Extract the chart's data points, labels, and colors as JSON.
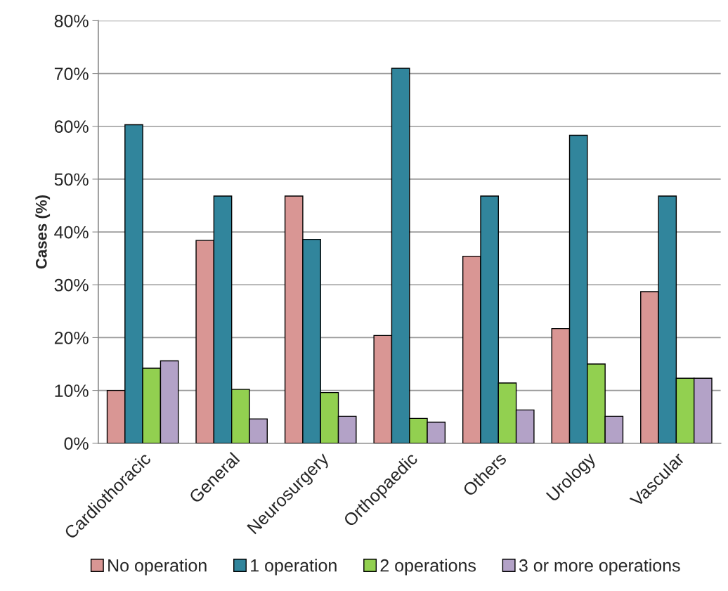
{
  "chart_data": {
    "type": "bar",
    "ylabel": "Cases (%)",
    "categories": [
      "Cardiothoracic",
      "General",
      "Neurosurgery",
      "Orthopaedic",
      "Others",
      "Urology",
      "Vascular"
    ],
    "series": [
      {
        "name": "No operation",
        "color": "#d99694",
        "values": [
          10.0,
          38.4,
          46.8,
          20.4,
          35.4,
          21.7,
          28.7
        ]
      },
      {
        "name": "1 operation",
        "color": "#31859c",
        "values": [
          60.3,
          46.8,
          38.6,
          71.0,
          46.8,
          58.3,
          46.8
        ]
      },
      {
        "name": "2 operations",
        "color": "#92d050",
        "values": [
          14.2,
          10.2,
          9.6,
          4.7,
          11.4,
          15.0,
          12.3
        ]
      },
      {
        "name": "3 or more operations",
        "color": "#b3a2c7",
        "values": [
          15.6,
          4.6,
          5.1,
          4.0,
          6.3,
          5.1,
          12.3
        ]
      }
    ],
    "ylim": [
      0,
      80
    ],
    "yticks": [
      {
        "value": 0,
        "label": "0%"
      },
      {
        "value": 10,
        "label": "10%"
      },
      {
        "value": 20,
        "label": "20%"
      },
      {
        "value": 30,
        "label": "30%"
      },
      {
        "value": 40,
        "label": "40%"
      },
      {
        "value": 50,
        "label": "50%"
      },
      {
        "value": 60,
        "label": "60%"
      },
      {
        "value": 70,
        "label": "70%"
      },
      {
        "value": 80,
        "label": "80%"
      }
    ],
    "grid": "y",
    "legend": "bottom"
  }
}
